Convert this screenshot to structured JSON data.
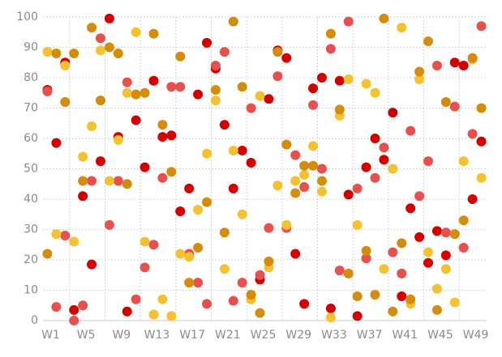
{
  "chart_data": {
    "type": "scatter",
    "categories": [
      "W1",
      null,
      null,
      null,
      "W5",
      null,
      null,
      null,
      "W9",
      null,
      null,
      null,
      "W13",
      null,
      null,
      null,
      "W17",
      null,
      null,
      null,
      "W21",
      null,
      null,
      null,
      "W25",
      null,
      null,
      null,
      "W29",
      null,
      null,
      null,
      "W33",
      null,
      null,
      null,
      "W37",
      null,
      null,
      null,
      "W41",
      null,
      null,
      null,
      "W45",
      null,
      null,
      null,
      "W49",
      null
    ],
    "ylim": [
      0,
      100
    ],
    "yticks": [
      0,
      10,
      20,
      30,
      40,
      50,
      60,
      70,
      80,
      90,
      100
    ],
    "grid": true,
    "series": [
      {
        "color": "#d40000",
        "values": [
          76,
          58.5,
          85,
          3.5,
          41,
          18.5,
          52.5,
          99.5,
          60.5,
          3,
          66,
          50.5,
          79,
          60.5,
          61,
          36,
          43.5,
          74.5,
          91.5,
          83,
          64.5,
          43.5,
          56,
          52,
          13.5,
          73,
          89,
          86.5,
          22,
          5.5,
          76.5,
          80,
          4,
          79,
          41.5,
          1.5,
          50.5,
          60,
          53,
          68.5,
          8,
          37,
          27.5,
          19,
          29.5,
          21.5,
          85,
          84,
          40,
          59
        ]
      },
      {
        "color": "#e8504d",
        "values": [
          75.5,
          4.5,
          28,
          0,
          5,
          46,
          93,
          31.5,
          46,
          78.5,
          7,
          17.5,
          25,
          47,
          77,
          77,
          22,
          12.5,
          5.5,
          84,
          88.5,
          6.5,
          12.5,
          70,
          15,
          30.5,
          80.5,
          30.5,
          54.5,
          44,
          71,
          50,
          89.5,
          16.5,
          98.5,
          43.5,
          20.5,
          47,
          57,
          22.5,
          15.5,
          62.5,
          41,
          52.5,
          84,
          29,
          70.5,
          24,
          61.5,
          97
        ]
      },
      {
        "color": "#f5c12e",
        "values": [
          88.5,
          28.5,
          84,
          26,
          54,
          64,
          89,
          46,
          59.5,
          75,
          95,
          26,
          2,
          7,
          1.5,
          22,
          21,
          36.5,
          55,
          72.5,
          17,
          56,
          35,
          7,
          74,
          17.5,
          44.5,
          31.5,
          46,
          48,
          57.5,
          42.5,
          1,
          67.5,
          79.5,
          31.5,
          78,
          75,
          17,
          50,
          96.5,
          5.5,
          79.5,
          22.5,
          10.5,
          17,
          6,
          52.5,
          86,
          47
        ]
      },
      {
        "color": "#d48c0a",
        "values": [
          22,
          88,
          72,
          88,
          46,
          96.5,
          72.5,
          90,
          88,
          45,
          74.5,
          75,
          94.5,
          64.5,
          49,
          87,
          12.5,
          24,
          39,
          76,
          29,
          98.5,
          77,
          8.5,
          2.5,
          19.5,
          88.5,
          58,
          42,
          51,
          51,
          46,
          94.5,
          69.5,
          15.5,
          8,
          23,
          8.5,
          99.5,
          3,
          25.5,
          7,
          82,
          92,
          3.5,
          72,
          28.5,
          33,
          86.5,
          70
        ]
      }
    ]
  }
}
